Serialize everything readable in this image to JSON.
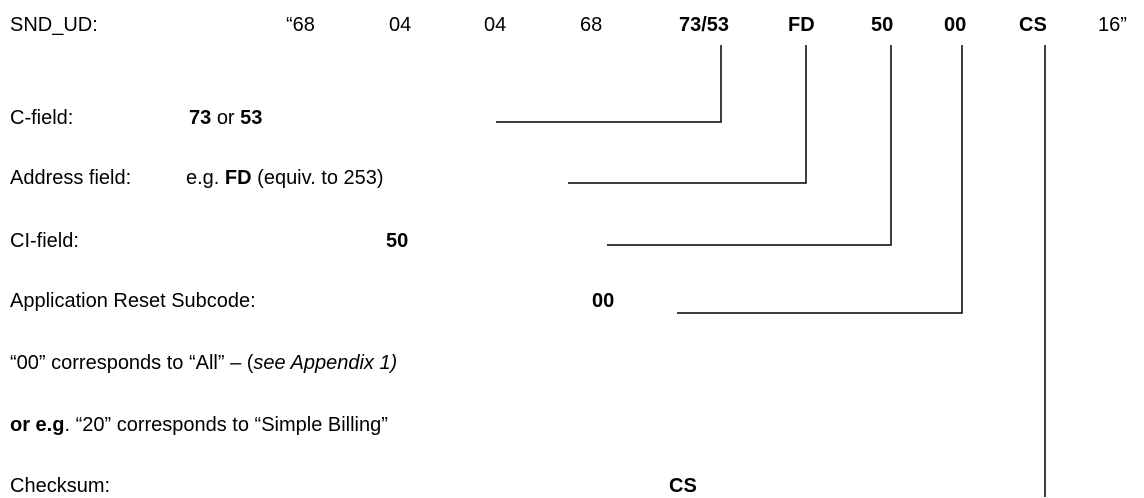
{
  "frame": {
    "label": "SND_UD:",
    "bytes": [
      "“68",
      "04",
      "04",
      "68",
      "73/53",
      "FD",
      "50",
      "00",
      "CS",
      "16”"
    ]
  },
  "c_field": {
    "label": "C-field:",
    "value1": "73",
    "or": "or",
    "value2": "53"
  },
  "address_field": {
    "label": "Address field:",
    "prefix": "e.g.",
    "value": "FD",
    "note": "(equiv. to 253)"
  },
  "ci_field": {
    "label": "CI-field:",
    "value": "50"
  },
  "reset_subcode": {
    "label": "Application Reset Subcode:",
    "value": "00"
  },
  "note_all": {
    "pre": "“00” corresponds to “All” – (",
    "appendix": "see Appendix 1)"
  },
  "note_simple": {
    "lead": "or e.g",
    "rest": ". “20” corresponds to “Simple Billing”"
  },
  "checksum": {
    "label": "Checksum:",
    "value": "CS"
  }
}
